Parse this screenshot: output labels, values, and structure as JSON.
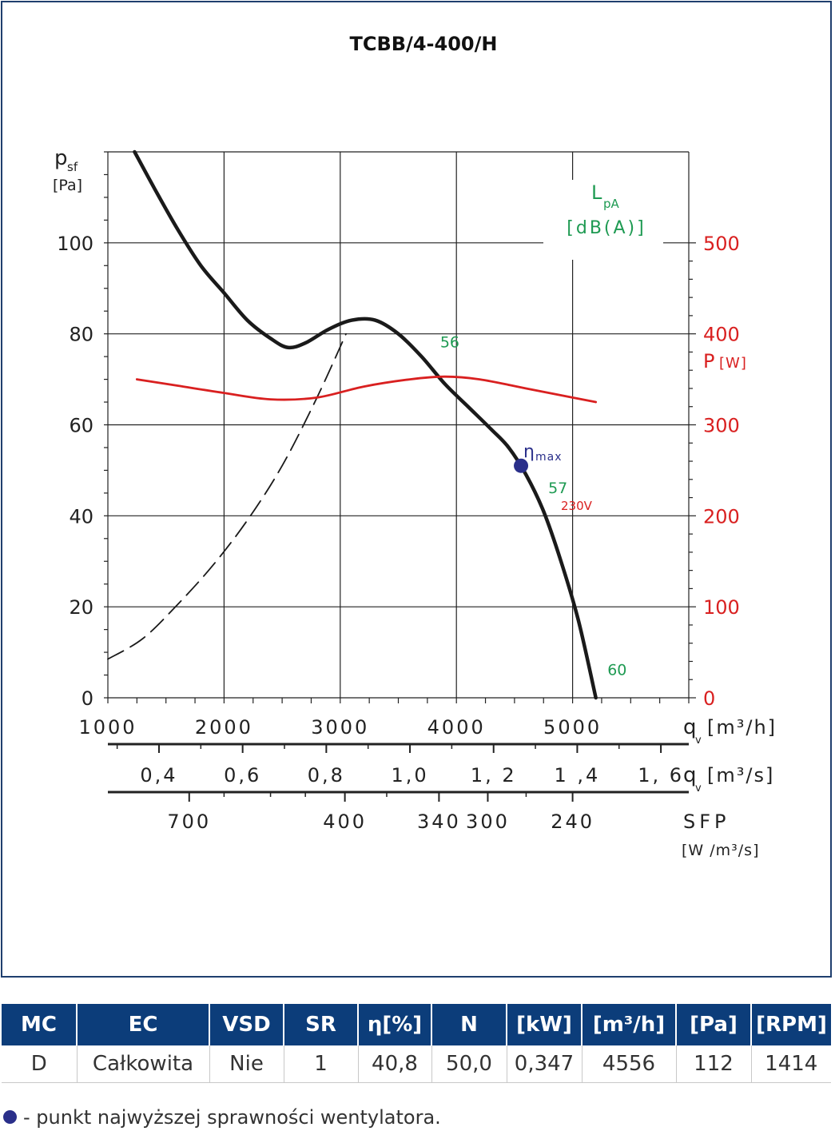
{
  "chart_data": {
    "type": "line",
    "title": "TCBB/4-400/H",
    "ylabel_main": "p",
    "ylabel_sub": "sf",
    "ylabel_unit": "[Pa]",
    "y_ticks": [
      0,
      20,
      40,
      60,
      80,
      100
    ],
    "ylim": [
      0,
      120
    ],
    "xlim": [
      1000,
      6000
    ],
    "x_ticks_m3h": [
      1000,
      2000,
      3000,
      4000,
      5000
    ],
    "x_label_m3h": "q",
    "x_label_m3h_sub": "v",
    "x_label_m3h_unit": "[m³/h]",
    "x_ticks_m3s": [
      {
        "value": 0.4,
        "label": "0,4"
      },
      {
        "value": 0.6,
        "label": "0,6"
      },
      {
        "value": 0.8,
        "label": "0,8"
      },
      {
        "value": 1.0,
        "label": "1,0"
      },
      {
        "value": 1.2,
        "label": "1, 2"
      },
      {
        "value": 1.4,
        "label": "1 ,4"
      },
      {
        "value": 1.6,
        "label": "1, 6"
      }
    ],
    "x_label_m3s": "q",
    "x_label_m3s_sub": "v",
    "x_label_m3s_unit": "[m³/s]",
    "sfp_ticks": [
      {
        "q_m3h": 1700,
        "label": "700"
      },
      {
        "q_m3h": 3040,
        "label": "400"
      },
      {
        "q_m3h": 3850,
        "label": "340"
      },
      {
        "q_m3h": 4270,
        "label": "300"
      },
      {
        "q_m3h": 5000,
        "label": "240"
      }
    ],
    "sfp_label": "SFP",
    "sfp_unit": "[W /m³/s]",
    "power_axis_label": "P",
    "power_axis_unit": "[W]",
    "power_ticks": [
      0,
      100,
      200,
      300,
      400,
      500
    ],
    "power_lim": [
      0,
      600
    ],
    "lpa_label": "L",
    "lpa_sub": "pA",
    "lpa_unit": "[dB(A)]",
    "series": [
      {
        "kind": "fan-curve",
        "color": "#1a1a1a",
        "q_m3h": [
          1230,
          1400,
          1600,
          1800,
          2000,
          2200,
          2400,
          2550,
          2700,
          2900,
          3100,
          3300,
          3500,
          3700,
          3900,
          4100,
          4300,
          4450,
          4600,
          4750,
          4900,
          5050,
          5200
        ],
        "p_pa": [
          120,
          112,
          103,
          95,
          89,
          83,
          79,
          77,
          78,
          81,
          83,
          83,
          80,
          75,
          69,
          64,
          59,
          55,
          49,
          41,
          30,
          17,
          0
        ]
      },
      {
        "kind": "system-curve",
        "color": "#1a1a1a",
        "dashed": true,
        "q_m3h": [
          1000,
          1300,
          1600,
          1900,
          2200,
          2500,
          2800,
          3050
        ],
        "p_pa": [
          8.5,
          13,
          20.5,
          29,
          39,
          51,
          66,
          80
        ]
      },
      {
        "name": "230V",
        "kind": "power",
        "color": "#d92020",
        "q_m3h": [
          1250,
          1600,
          2000,
          2400,
          2800,
          3200,
          3600,
          3900,
          4200,
          4600,
          5000,
          5200
        ],
        "power_w": [
          350,
          343,
          335,
          328,
          330,
          342,
          350,
          353,
          350,
          340,
          330,
          325
        ]
      }
    ],
    "lpa_labels": [
      {
        "q_m3h": 3860,
        "p_pa": 77,
        "label": "56"
      },
      {
        "q_m3h": 4790,
        "p_pa": 45,
        "label": "57"
      },
      {
        "q_m3h": 5300,
        "p_pa": 5,
        "label": "60"
      }
    ],
    "eta_max_point": {
      "q_m3h": 4556,
      "p_pa": 51,
      "color": "#2a2f8a"
    },
    "eta_max_label": "η",
    "eta_max_label_sub": "max"
  },
  "table": {
    "headers": [
      "MC",
      "EC",
      "VSD",
      "SR",
      "η[%]",
      "N",
      "[kW]",
      "[m³/h]",
      "[Pa]",
      "[RPM]"
    ],
    "rows": [
      [
        "D",
        "Całkowita",
        "Nie",
        "1",
        "40,8",
        "50,0",
        "0,347",
        "4556",
        "112",
        "1414"
      ]
    ],
    "header_color": "#0c3d7a"
  },
  "footnote": "- punkt najwyższej sprawności wentylatora."
}
